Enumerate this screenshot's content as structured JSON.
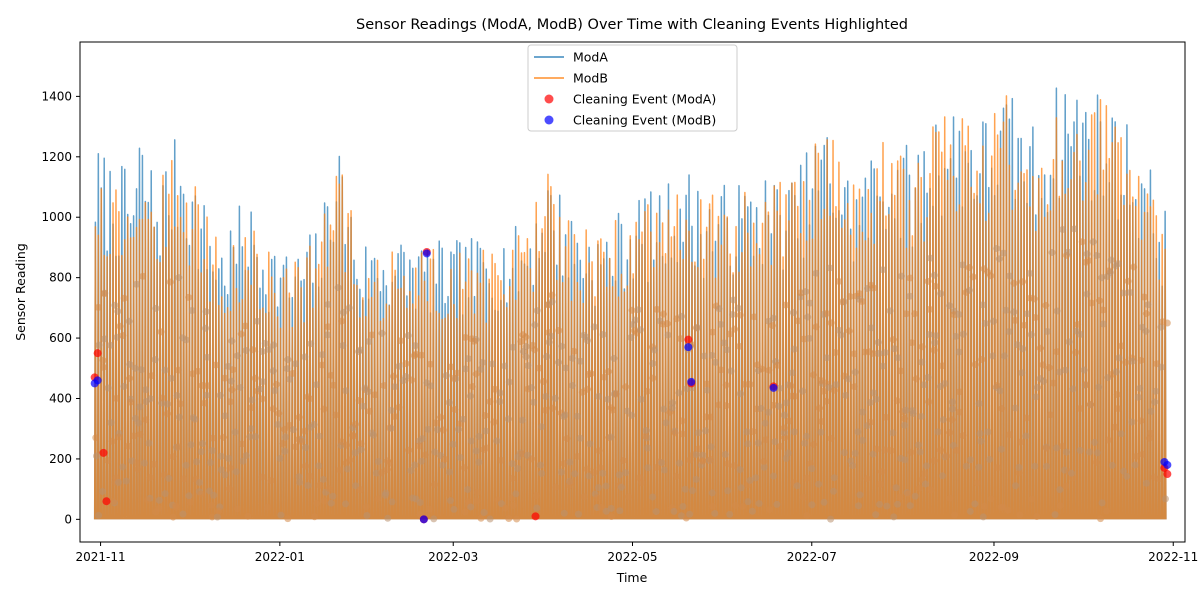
{
  "chart_data": {
    "type": "line",
    "title": "Sensor Readings (ModA, ModB) Over Time with Cleaning Events Highlighted",
    "xlabel": "Time",
    "ylabel": "Sensor Reading",
    "xlim": [
      "2021-10-25",
      "2022-11-05"
    ],
    "ylim": [
      -75,
      1580
    ],
    "x_ticks": [
      {
        "value": "2021-11-01",
        "label": "2021-11"
      },
      {
        "value": "2022-01-01",
        "label": "2022-01"
      },
      {
        "value": "2022-03-01",
        "label": "2022-03"
      },
      {
        "value": "2022-05-01",
        "label": "2022-05"
      },
      {
        "value": "2022-07-01",
        "label": "2022-07"
      },
      {
        "value": "2022-09-01",
        "label": "2022-09"
      },
      {
        "value": "2022-11-01",
        "label": "2022-11"
      }
    ],
    "y_ticks": [
      0,
      200,
      400,
      600,
      800,
      1000,
      1200,
      1400
    ],
    "grid": false,
    "legend_position": "top-center",
    "series": [
      {
        "name": "ModA",
        "kind": "line",
        "color": "#1f77b4",
        "envelope": [
          [
            "2021-10-30",
            1250
          ],
          [
            "2021-11-05",
            1190
          ],
          [
            "2021-11-12",
            1150
          ],
          [
            "2021-11-14",
            1310
          ],
          [
            "2021-11-20",
            1150
          ],
          [
            "2021-11-28",
            1300
          ],
          [
            "2021-12-05",
            1080
          ],
          [
            "2021-12-12",
            940
          ],
          [
            "2021-12-20",
            1070
          ],
          [
            "2021-12-28",
            950
          ],
          [
            "2022-01-05",
            880
          ],
          [
            "2022-01-15",
            1000
          ],
          [
            "2022-01-20",
            1310
          ],
          [
            "2022-01-28",
            930
          ],
          [
            "2022-02-05",
            950
          ],
          [
            "2022-02-15",
            940
          ],
          [
            "2022-02-25",
            920
          ],
          [
            "2022-03-05",
            930
          ],
          [
            "2022-03-15",
            950
          ],
          [
            "2022-03-25",
            980
          ],
          [
            "2022-04-02",
            1170
          ],
          [
            "2022-04-10",
            1030
          ],
          [
            "2022-04-20",
            960
          ],
          [
            "2022-05-01",
            1080
          ],
          [
            "2022-05-10",
            1090
          ],
          [
            "2022-05-18",
            1190
          ],
          [
            "2022-05-25",
            1100
          ],
          [
            "2022-06-05",
            1120
          ],
          [
            "2022-06-15",
            1150
          ],
          [
            "2022-06-25",
            1140
          ],
          [
            "2022-07-05",
            1340
          ],
          [
            "2022-07-15",
            1130
          ],
          [
            "2022-07-25",
            1290
          ],
          [
            "2022-08-05",
            1230
          ],
          [
            "2022-08-12",
            1380
          ],
          [
            "2022-08-20",
            1400
          ],
          [
            "2022-08-28",
            1350
          ],
          [
            "2022-09-05",
            1430
          ],
          [
            "2022-09-15",
            1310
          ],
          [
            "2022-09-25",
            1500
          ],
          [
            "2022-10-05",
            1440
          ],
          [
            "2022-10-12",
            1380
          ],
          [
            "2022-10-20",
            1270
          ],
          [
            "2022-10-28",
            1060
          ]
        ]
      },
      {
        "name": "ModB",
        "kind": "line",
        "color": "#ff7f0e",
        "envelope": [
          [
            "2021-10-30",
            1230
          ],
          [
            "2021-11-05",
            1160
          ],
          [
            "2021-11-12",
            1120
          ],
          [
            "2021-11-14",
            1290
          ],
          [
            "2021-11-20",
            1120
          ],
          [
            "2021-11-28",
            1240
          ],
          [
            "2021-12-05",
            1060
          ],
          [
            "2021-12-12",
            890
          ],
          [
            "2021-12-20",
            1000
          ],
          [
            "2021-12-28",
            900
          ],
          [
            "2022-01-05",
            850
          ],
          [
            "2022-01-15",
            960
          ],
          [
            "2022-01-20",
            1250
          ],
          [
            "2022-01-28",
            900
          ],
          [
            "2022-02-05",
            900
          ],
          [
            "2022-02-15",
            900
          ],
          [
            "2022-02-25",
            900
          ],
          [
            "2022-03-05",
            900
          ],
          [
            "2022-03-15",
            900
          ],
          [
            "2022-03-25",
            950
          ],
          [
            "2022-04-02",
            1150
          ],
          [
            "2022-04-10",
            1000
          ],
          [
            "2022-04-20",
            930
          ],
          [
            "2022-05-01",
            1060
          ],
          [
            "2022-05-10",
            1070
          ],
          [
            "2022-05-18",
            1180
          ],
          [
            "2022-05-25",
            1080
          ],
          [
            "2022-06-05",
            1100
          ],
          [
            "2022-06-15",
            1130
          ],
          [
            "2022-06-25",
            1120
          ],
          [
            "2022-07-05",
            1320
          ],
          [
            "2022-07-15",
            1110
          ],
          [
            "2022-07-25",
            1270
          ],
          [
            "2022-08-05",
            1200
          ],
          [
            "2022-08-12",
            1360
          ],
          [
            "2022-08-20",
            1380
          ],
          [
            "2022-08-28",
            1330
          ],
          [
            "2022-09-05",
            1410
          ],
          [
            "2022-09-15",
            1290
          ],
          [
            "2022-09-25",
            1480
          ],
          [
            "2022-10-05",
            1420
          ],
          [
            "2022-10-12",
            1360
          ],
          [
            "2022-10-20",
            1250
          ],
          [
            "2022-10-28",
            1040
          ]
        ]
      },
      {
        "name": "Cleaning Event (ModA)",
        "kind": "scatter",
        "color": "#ff0000",
        "points": [
          [
            "2021-10-30",
            470
          ],
          [
            "2021-10-31",
            550
          ],
          [
            "2021-11-02",
            220
          ],
          [
            "2021-11-03",
            60
          ],
          [
            "2022-02-19",
            0
          ],
          [
            "2022-02-20",
            885
          ],
          [
            "2022-03-29",
            10
          ],
          [
            "2022-05-20",
            595
          ],
          [
            "2022-05-21",
            450
          ],
          [
            "2022-06-18",
            440
          ],
          [
            "2022-10-29",
            170
          ],
          [
            "2022-10-30",
            150
          ]
        ]
      },
      {
        "name": "Cleaning Event (ModB)",
        "kind": "scatter",
        "color": "#0000ff",
        "points": [
          [
            "2021-10-30",
            450
          ],
          [
            "2021-10-31",
            460
          ],
          [
            "2022-02-19",
            0
          ],
          [
            "2022-02-20",
            880
          ],
          [
            "2022-05-20",
            570
          ],
          [
            "2022-05-21",
            455
          ],
          [
            "2022-06-18",
            435
          ],
          [
            "2022-10-29",
            190
          ],
          [
            "2022-10-30",
            180
          ]
        ]
      }
    ]
  }
}
